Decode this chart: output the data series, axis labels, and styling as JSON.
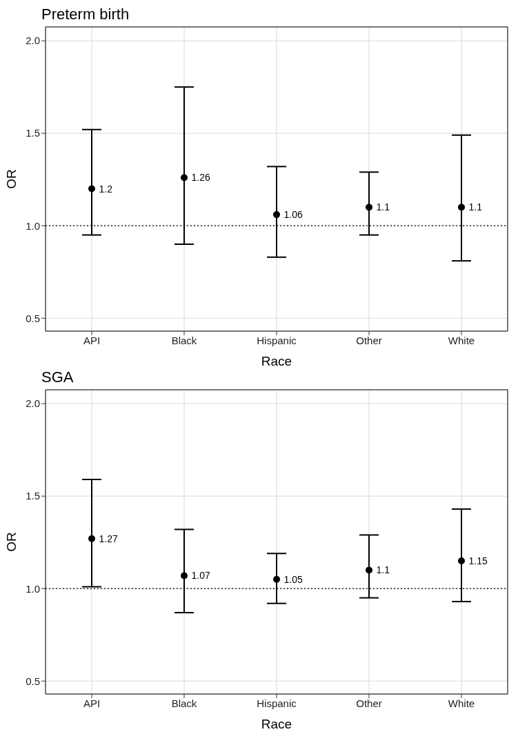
{
  "chart_data": [
    {
      "type": "scatter",
      "title": "Preterm birth",
      "xlabel": "Race",
      "ylabel": "OR",
      "categories": [
        "API",
        "Black",
        "Hispanic",
        "Other",
        "White"
      ],
      "color": "#000000",
      "marker": "circle",
      "data_labels": true,
      "grid": true,
      "values": [
        1.2,
        1.26,
        1.06,
        1.1,
        1.1
      ],
      "errors": [
        [
          0.95,
          1.52
        ],
        [
          0.9,
          1.75
        ],
        [
          0.83,
          1.32
        ],
        [
          0.95,
          1.29
        ],
        [
          0.81,
          1.49
        ]
      ],
      "ylim": [
        0.43,
        2.075
      ],
      "yticks": [
        {
          "value": 0.5,
          "label": "0.5"
        },
        {
          "value": 1,
          "label": "1.0"
        },
        {
          "value": 1.5,
          "label": "1.5"
        },
        {
          "value": 2,
          "label": "2.0"
        }
      ],
      "ref_lines": [
        {
          "axis": "y",
          "value": 1,
          "line_style": "dotted",
          "color": "#000000"
        }
      ]
    },
    {
      "type": "scatter",
      "title": "SGA",
      "xlabel": "Race",
      "ylabel": "OR",
      "categories": [
        "API",
        "Black",
        "Hispanic",
        "Other",
        "White"
      ],
      "color": "#000000",
      "marker": "circle",
      "data_labels": true,
      "grid": true,
      "values": [
        1.27,
        1.07,
        1.05,
        1.1,
        1.15
      ],
      "errors": [
        [
          1.01,
          1.59
        ],
        [
          0.87,
          1.32
        ],
        [
          0.92,
          1.19
        ],
        [
          0.95,
          1.29
        ],
        [
          0.93,
          1.43
        ]
      ],
      "ylim": [
        0.43,
        2.075
      ],
      "yticks": [
        {
          "value": 0.5,
          "label": "0.5"
        },
        {
          "value": 1,
          "label": "1.0"
        },
        {
          "value": 1.5,
          "label": "1.5"
        },
        {
          "value": 2,
          "label": "2.0"
        }
      ],
      "ref_lines": [
        {
          "axis": "y",
          "value": 1,
          "line_style": "dotted",
          "color": "#000000"
        }
      ]
    }
  ]
}
